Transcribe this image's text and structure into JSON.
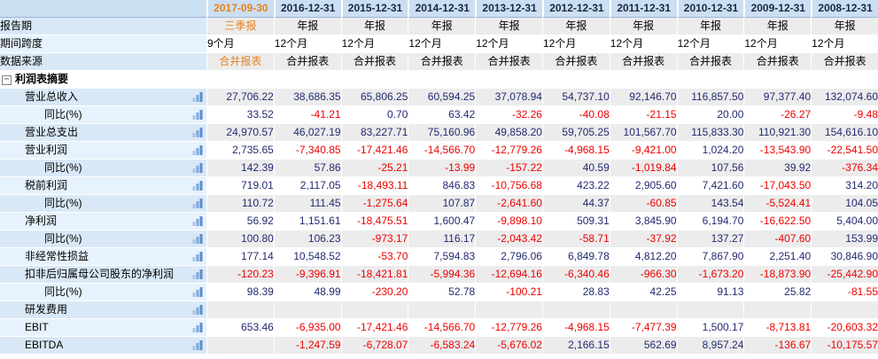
{
  "table": {
    "columns": [
      "2017-09-30",
      "2016-12-31",
      "2015-12-31",
      "2014-12-31",
      "2013-12-31",
      "2012-12-31",
      "2011-12-31",
      "2010-12-31",
      "2009-12-31",
      "2008-12-31"
    ],
    "meta_rows": [
      {
        "label": "报告期",
        "align": "center",
        "first_highlight": true,
        "values": [
          "三季报",
          "年报",
          "年报",
          "年报",
          "年报",
          "年报",
          "年报",
          "年报",
          "年报",
          "年报"
        ]
      },
      {
        "label": "期间跨度",
        "align": "left",
        "first_highlight": false,
        "values": [
          "9个月",
          "12个月",
          "12个月",
          "12个月",
          "12个月",
          "12个月",
          "12个月",
          "12个月",
          "12个月",
          "12个月"
        ]
      },
      {
        "label": "数据来源",
        "align": "center",
        "first_highlight": true,
        "values": [
          "合并报表",
          "合并报表",
          "合并报表",
          "合并报表",
          "合并报表",
          "合并报表",
          "合并报表",
          "合并报表",
          "合并报表",
          "合并报表"
        ]
      }
    ],
    "section": {
      "title": "利润表摘要",
      "collapse_glyph": "−"
    },
    "rows": [
      {
        "label": "营业总收入",
        "indent": 1,
        "values": [
          "27,706.22",
          "38,686.35",
          "65,806.25",
          "60,594.25",
          "37,078.94",
          "54,737.10",
          "92,146.70",
          "116,857.50",
          "97,377.40",
          "132,074.60"
        ]
      },
      {
        "label": "同比(%)",
        "indent": 2,
        "values": [
          "33.52",
          "-41.21",
          "0.70",
          "63.42",
          "-32.26",
          "-40.08",
          "-21.15",
          "20.00",
          "-26.27",
          "-9.48"
        ]
      },
      {
        "label": "营业总支出",
        "indent": 1,
        "values": [
          "24,970.57",
          "46,027.19",
          "83,227.71",
          "75,160.96",
          "49,858.20",
          "59,705.25",
          "101,567.70",
          "115,833.30",
          "110,921.30",
          "154,616.10"
        ]
      },
      {
        "label": "营业利润",
        "indent": 1,
        "values": [
          "2,735.65",
          "-7,340.85",
          "-17,421.46",
          "-14,566.70",
          "-12,779.26",
          "-4,968.15",
          "-9,421.00",
          "1,024.20",
          "-13,543.90",
          "-22,541.50"
        ]
      },
      {
        "label": "同比(%)",
        "indent": 2,
        "values": [
          "142.39",
          "57.86",
          "-25.21",
          "-13.99",
          "-157.22",
          "40.59",
          "-1,019.84",
          "107.56",
          "39.92",
          "-376.34"
        ]
      },
      {
        "label": "税前利润",
        "indent": 1,
        "values": [
          "719.01",
          "2,117.05",
          "-18,493.11",
          "846.83",
          "-10,756.68",
          "423.22",
          "2,905.60",
          "7,421.60",
          "-17,043.50",
          "314.20"
        ]
      },
      {
        "label": "同比(%)",
        "indent": 2,
        "values": [
          "110.72",
          "111.45",
          "-1,275.64",
          "107.87",
          "-2,641.60",
          "44.37",
          "-60.85",
          "143.54",
          "-5,524.41",
          "104.05"
        ]
      },
      {
        "label": "净利润",
        "indent": 1,
        "values": [
          "56.92",
          "1,151.61",
          "-18,475.51",
          "1,600.47",
          "-9,898.10",
          "509.31",
          "3,845.90",
          "6,194.70",
          "-16,622.50",
          "5,404.00"
        ]
      },
      {
        "label": "同比(%)",
        "indent": 2,
        "values": [
          "100.80",
          "106.23",
          "-973.17",
          "116.17",
          "-2,043.42",
          "-58.71",
          "-37.92",
          "137.27",
          "-407.60",
          "153.99"
        ]
      },
      {
        "label": "非经常性损益",
        "indent": 1,
        "values": [
          "177.14",
          "10,548.52",
          "-53.70",
          "7,594.83",
          "2,796.06",
          "6,849.78",
          "4,812.20",
          "7,867.90",
          "2,251.40",
          "30,846.90"
        ]
      },
      {
        "label": "扣非后归属母公司股东的净利润",
        "indent": 1,
        "values": [
          "-120.23",
          "-9,396.91",
          "-18,421.81",
          "-5,994.36",
          "-12,694.16",
          "-6,340.46",
          "-966.30",
          "-1,673.20",
          "-18,873.90",
          "-25,442.90"
        ]
      },
      {
        "label": "同比(%)",
        "indent": 2,
        "values": [
          "98.39",
          "48.99",
          "-230.20",
          "52.78",
          "-100.21",
          "28.83",
          "42.25",
          "91.13",
          "25.82",
          "-81.55"
        ]
      },
      {
        "label": "研发费用",
        "indent": 1,
        "values": [
          "",
          "",
          "",
          "",
          "",
          "",
          "",
          "",
          "",
          ""
        ]
      },
      {
        "label": "EBIT",
        "indent": 1,
        "values": [
          "653.46",
          "-6,935.00",
          "-17,421.46",
          "-14,566.70",
          "-12,779.26",
          "-4,968.15",
          "-7,477.39",
          "1,500.17",
          "-8,713.81",
          "-20,603.32"
        ]
      },
      {
        "label": "EBITDA",
        "indent": 1,
        "values": [
          "",
          "-1,247.59",
          "-6,728.07",
          "-6,583.24",
          "-5,676.02",
          "2,166.15",
          "562.69",
          "8,957.24",
          "-136.67",
          "-10,175.57"
        ]
      }
    ]
  },
  "colors": {
    "accent_orange": "#e6821e",
    "num_negative": "#ee0000",
    "num_positive": "#232a70",
    "header_bg": "#cbdff2",
    "stripe_bg": "#ececec",
    "label_bg_dark": "#d9e8f7",
    "label_bg_light": "#e6f2fd",
    "icon_bar_colors": [
      "#a9c5e8",
      "#7fa8db",
      "#5a8ecf"
    ]
  }
}
